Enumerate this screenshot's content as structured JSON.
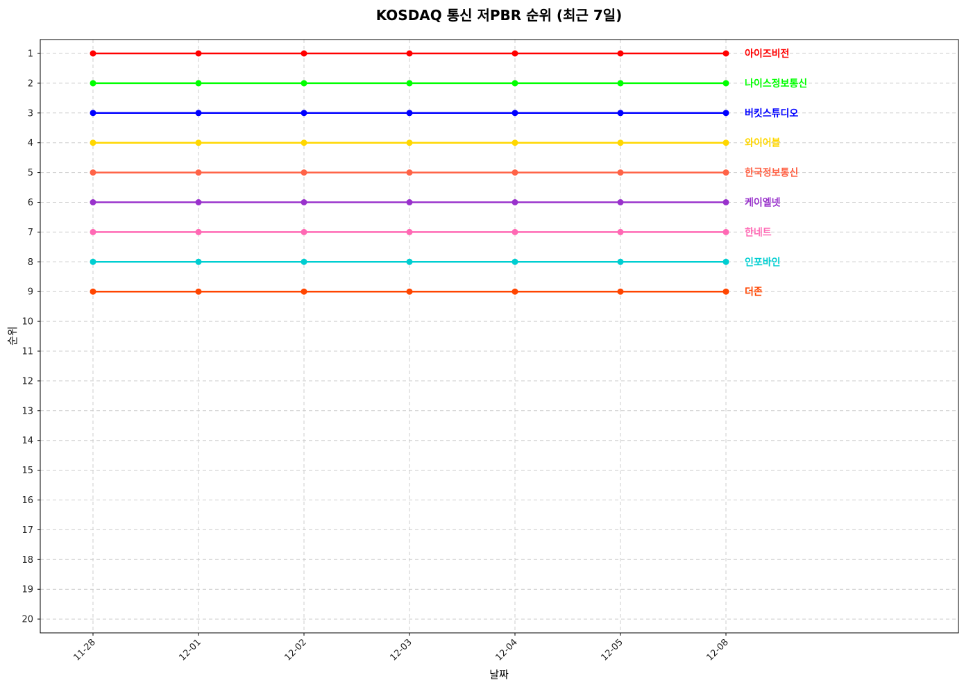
{
  "chart_data": {
    "type": "line",
    "title": "KOSDAQ 통신 저PBR 순위 (최근 7일)",
    "xlabel": "날짜",
    "ylabel": "순위",
    "categories": [
      "11-28",
      "12-01",
      "12-02",
      "12-03",
      "12-04",
      "12-05",
      "12-08"
    ],
    "ylim": [
      1,
      20
    ],
    "y_inverted": true,
    "yticks": [
      1,
      2,
      3,
      4,
      5,
      6,
      7,
      8,
      9,
      10,
      11,
      12,
      13,
      14,
      15,
      16,
      17,
      18,
      19,
      20
    ],
    "grid": true,
    "legend": "inline-right",
    "series": [
      {
        "name": "아이즈비전",
        "color": "#ff0000",
        "values": [
          1,
          1,
          1,
          1,
          1,
          1,
          1
        ]
      },
      {
        "name": "나이스정보통신",
        "color": "#00ff00",
        "values": [
          2,
          2,
          2,
          2,
          2,
          2,
          2
        ]
      },
      {
        "name": "버킷스튜디오",
        "color": "#0000ff",
        "values": [
          3,
          3,
          3,
          3,
          3,
          3,
          3
        ]
      },
      {
        "name": "와이어블",
        "color": "#ffd700",
        "values": [
          4,
          4,
          4,
          4,
          4,
          4,
          4
        ]
      },
      {
        "name": "한국정보통신",
        "color": "#ff6347",
        "values": [
          5,
          5,
          5,
          5,
          5,
          5,
          5
        ]
      },
      {
        "name": "케이엘넷",
        "color": "#9932cc",
        "values": [
          6,
          6,
          6,
          6,
          6,
          6,
          6
        ]
      },
      {
        "name": "한네트",
        "color": "#ff69b4",
        "values": [
          7,
          7,
          7,
          7,
          7,
          7,
          7
        ]
      },
      {
        "name": "인포바인",
        "color": "#00ced1",
        "values": [
          8,
          8,
          8,
          8,
          8,
          8,
          8
        ]
      },
      {
        "name": "더존",
        "color": "#ff4500",
        "values": [
          9,
          9,
          9,
          9,
          9,
          9,
          9
        ]
      }
    ]
  }
}
